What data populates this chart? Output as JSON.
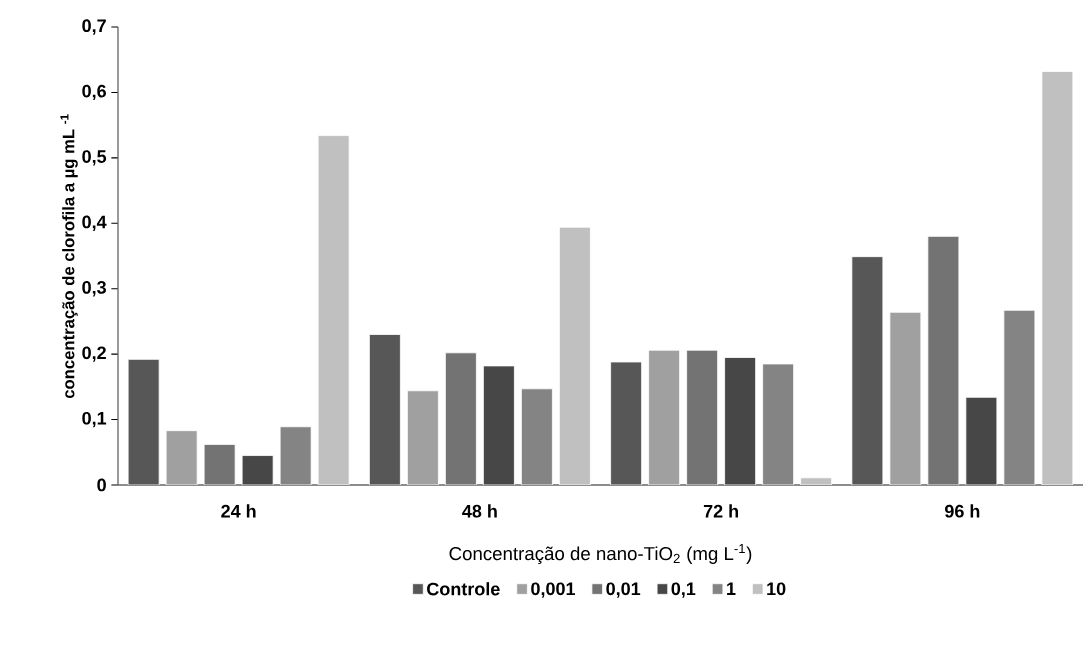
{
  "chart_data": {
    "type": "bar",
    "xlabel": "Concentração de nano-TiO$_{2}$ (mg L$^{-1}$)",
    "ylabel": "concentração de clorofila a µg mL $^{-1}$",
    "categories": [
      "24 h",
      "48 h",
      "72 h",
      "96 h"
    ],
    "series": [
      {
        "name": "Controle",
        "color": "#575757",
        "values": [
          0.192,
          0.23,
          0.188,
          0.349
        ]
      },
      {
        "name": "0,001",
        "color": "#a0a0a0",
        "values": [
          0.083,
          0.144,
          0.206,
          0.264
        ]
      },
      {
        "name": "0,01",
        "color": "#737373",
        "values": [
          0.062,
          0.202,
          0.206,
          0.38
        ]
      },
      {
        "name": "0,1",
        "color": "#474747",
        "values": [
          0.045,
          0.182,
          0.195,
          0.134
        ]
      },
      {
        "name": "1",
        "color": "#848484",
        "values": [
          0.089,
          0.147,
          0.185,
          0.267
        ]
      },
      {
        "name": "10",
        "color": "#c0c0c0",
        "values": [
          0.534,
          0.394,
          0.011,
          0.632
        ]
      }
    ],
    "ylim": [
      0,
      0.7
    ],
    "yticks": [
      {
        "value": 0,
        "label": "0"
      },
      {
        "value": 0.1,
        "label": "0,1"
      },
      {
        "value": 0.2,
        "label": "0,2"
      },
      {
        "value": 0.3,
        "label": "0,3"
      },
      {
        "value": 0.4,
        "label": "0,4"
      },
      {
        "value": 0.5,
        "label": "0,5"
      },
      {
        "value": 0.6,
        "label": "0,6"
      },
      {
        "value": 0.7,
        "label": "0,7"
      }
    ],
    "legend": "bottom",
    "grid": false
  }
}
